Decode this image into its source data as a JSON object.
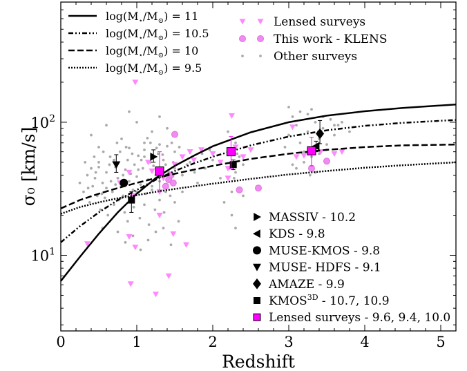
{
  "chart_data": {
    "type": "scatter",
    "xlabel": "Redshift",
    "ylabel": "σ₀ [km/s]",
    "xlim": [
      0,
      5.2
    ],
    "ylim": [
      2.7,
      800
    ],
    "yscale": "log",
    "x_ticks": [
      "0",
      "1",
      "2",
      "3",
      "4",
      "5"
    ],
    "y_ticks": [
      {
        "base": "10",
        "exp": "1",
        "value": 10
      },
      {
        "base": "10",
        "exp": "2",
        "value": 100
      }
    ],
    "model_curves": [
      {
        "label_pre": "log(M",
        "label_mid": "/M",
        "label_post": ") = 11",
        "style": "solid",
        "points": [
          [
            0,
            6.4
          ],
          [
            0.25,
            9.7
          ],
          [
            0.5,
            14.5
          ],
          [
            0.75,
            21
          ],
          [
            1,
            29
          ],
          [
            1.25,
            38
          ],
          [
            1.5,
            47
          ],
          [
            1.75,
            56
          ],
          [
            2,
            66
          ],
          [
            2.5,
            84
          ],
          [
            3,
            100
          ],
          [
            3.5,
            112
          ],
          [
            4,
            121
          ],
          [
            4.5,
            128
          ],
          [
            5.2,
            136
          ]
        ]
      },
      {
        "label_pre": "log(M",
        "label_mid": "/M",
        "label_post": ") = 10.5",
        "style": "dashdot",
        "points": [
          [
            0,
            12.5
          ],
          [
            0.25,
            16.5
          ],
          [
            0.5,
            21
          ],
          [
            0.75,
            26
          ],
          [
            1,
            31
          ],
          [
            1.25,
            37
          ],
          [
            1.5,
            43
          ],
          [
            1.75,
            49
          ],
          [
            2,
            55
          ],
          [
            2.5,
            67
          ],
          [
            3,
            78
          ],
          [
            3.5,
            87
          ],
          [
            4,
            94
          ],
          [
            4.5,
            99
          ],
          [
            5.2,
            104
          ]
        ]
      },
      {
        "label_pre": "log(M",
        "label_mid": "/M",
        "label_post": ") = 10",
        "style": "dashed",
        "points": [
          [
            0,
            22.5
          ],
          [
            0.25,
            26
          ],
          [
            0.5,
            29
          ],
          [
            0.75,
            32
          ],
          [
            1,
            35
          ],
          [
            1.25,
            38
          ],
          [
            1.5,
            41
          ],
          [
            1.75,
            44
          ],
          [
            2,
            47
          ],
          [
            2.5,
            53
          ],
          [
            3,
            58
          ],
          [
            3.5,
            62
          ],
          [
            4,
            65
          ],
          [
            4.5,
            67
          ],
          [
            5.2,
            68
          ]
        ]
      },
      {
        "label_pre": "log(M",
        "label_mid": "/M",
        "label_post": ") = 9.5",
        "style": "dotted",
        "points": [
          [
            0,
            20.5
          ],
          [
            0.25,
            23
          ],
          [
            0.5,
            25
          ],
          [
            0.75,
            26.8
          ],
          [
            1,
            28.3
          ],
          [
            1.25,
            30
          ],
          [
            1.5,
            31.5
          ],
          [
            1.75,
            33
          ],
          [
            2,
            34.5
          ],
          [
            2.5,
            37.5
          ],
          [
            3,
            40.5
          ],
          [
            3.5,
            43
          ],
          [
            4,
            45.5
          ],
          [
            4.5,
            47.5
          ],
          [
            5.2,
            50
          ]
        ]
      }
    ],
    "marker_legend_top": [
      {
        "label": "Lensed surveys",
        "marker": "triangle-down",
        "color": "#ff88ff"
      },
      {
        "label": "This work - KLENS",
        "marker": "circle",
        "color": "#f08cf0"
      },
      {
        "label": "Other surveys",
        "marker": "dot",
        "color": "#aaaaaa"
      }
    ],
    "sample_legend": [
      {
        "label": "MASSIV - 10.2",
        "marker": "triangle-right",
        "color": "#000000"
      },
      {
        "label": "KDS - 9.8",
        "marker": "triangle-left",
        "color": "#000000"
      },
      {
        "label": "MUSE-KMOS - 9.8",
        "marker": "circle",
        "color": "#000000"
      },
      {
        "label": "MUSE- HDFS - 9.1",
        "marker": "triangle-down",
        "color": "#000000"
      },
      {
        "label": "AMAZE - 9.9",
        "marker": "diamond",
        "color": "#000000"
      },
      {
        "label_pre": "KMOS",
        "label_sup": "3D",
        "label_post": " - 10.7, 10.9",
        "marker": "square",
        "color": "#000000"
      },
      {
        "label": "Lensed surveys - 9.6, 9.4, 10.0",
        "marker": "square",
        "color": "#ff00ff"
      }
    ],
    "sample_medians": [
      {
        "x": 1.22,
        "y": 55,
        "yerr": [
          50,
          62
        ],
        "marker": "triangle-right",
        "color": "#000000"
      },
      {
        "x": 3.36,
        "y": 66,
        "yerr": [
          60,
          72
        ],
        "marker": "triangle-left",
        "color": "#000000"
      },
      {
        "x": 0.83,
        "y": 35,
        "yerr": [
          33,
          37
        ],
        "marker": "circle",
        "color": "#000000"
      },
      {
        "x": 0.73,
        "y": 48,
        "yerr": [
          42,
          57
        ],
        "marker": "triangle-down",
        "color": "#000000"
      },
      {
        "x": 3.41,
        "y": 82,
        "yerr": [
          69,
          103
        ],
        "marker": "diamond",
        "color": "#000000"
      },
      {
        "x": 0.93,
        "y": 26,
        "yerr": [
          21,
          30
        ],
        "marker": "square",
        "color": "#000000"
      },
      {
        "x": 2.27,
        "y": 48,
        "yerr": [
          44,
          52
        ],
        "marker": "square",
        "color": "#000000"
      },
      {
        "x": 1.3,
        "y": 43,
        "yerr": [
          30,
          60
        ],
        "marker": "square",
        "color": "#ff00ff"
      },
      {
        "x": 2.24,
        "y": 60,
        "yerr": [
          45,
          78
        ],
        "marker": "square",
        "color": "#ff00ff"
      },
      {
        "x": 3.3,
        "y": 61,
        "yerr": [
          47,
          77
        ],
        "marker": "square",
        "color": "#ff00ff"
      }
    ],
    "lensed_points": [
      [
        0.35,
        12.2
      ],
      [
        0.9,
        13.8
      ],
      [
        0.92,
        6.1
      ],
      [
        0.98,
        11.5
      ],
      [
        1.25,
        5.1
      ],
      [
        1.42,
        7
      ],
      [
        1.48,
        14.5
      ],
      [
        1.65,
        12
      ],
      [
        0.78,
        35
      ],
      [
        0.9,
        42
      ],
      [
        1.15,
        50
      ],
      [
        1.2,
        43
      ],
      [
        1.3,
        30
      ],
      [
        1.35,
        38
      ],
      [
        1.5,
        48
      ],
      [
        1.6,
        55
      ],
      [
        1.7,
        60
      ],
      [
        1.75,
        52
      ],
      [
        1.85,
        62
      ],
      [
        2.0,
        58
      ],
      [
        2.1,
        50
      ],
      [
        2.2,
        45
      ],
      [
        2.25,
        112
      ],
      [
        2.4,
        55
      ],
      [
        2.5,
        62
      ],
      [
        2.2,
        38
      ],
      [
        2.3,
        65
      ],
      [
        3.05,
        92
      ],
      [
        3.1,
        55
      ],
      [
        3.2,
        56
      ],
      [
        3.35,
        64
      ],
      [
        3.42,
        60
      ],
      [
        3.6,
        58
      ],
      [
        3.7,
        60
      ],
      [
        0.95,
        28
      ],
      [
        1.3,
        20
      ],
      [
        0.98,
        200
      ]
    ],
    "klens_points": [
      [
        1.38,
        33
      ],
      [
        1.42,
        37
      ],
      [
        1.45,
        40
      ],
      [
        1.48,
        35
      ],
      [
        1.5,
        81
      ],
      [
        2.35,
        31
      ],
      [
        2.6,
        32
      ],
      [
        3.5,
        51
      ],
      [
        3.3,
        45
      ]
    ],
    "other_survey_points": [
      [
        0.35,
        40
      ],
      [
        0.4,
        45
      ],
      [
        0.45,
        38
      ],
      [
        0.5,
        50
      ],
      [
        0.55,
        35
      ],
      [
        0.6,
        42
      ],
      [
        0.65,
        55
      ],
      [
        0.68,
        30
      ],
      [
        0.72,
        46
      ],
      [
        0.75,
        38
      ],
      [
        0.78,
        60
      ],
      [
        0.8,
        33
      ],
      [
        0.82,
        28
      ],
      [
        0.85,
        44
      ],
      [
        0.88,
        52
      ],
      [
        0.9,
        36
      ],
      [
        0.92,
        41
      ],
      [
        0.95,
        31
      ],
      [
        0.97,
        48
      ],
      [
        1.0,
        39
      ],
      [
        1.02,
        56
      ],
      [
        1.05,
        34
      ],
      [
        1.08,
        45
      ],
      [
        1.1,
        62
      ],
      [
        1.12,
        29
      ],
      [
        1.15,
        37
      ],
      [
        1.18,
        70
      ],
      [
        1.2,
        33
      ],
      [
        1.22,
        47
      ],
      [
        1.25,
        40
      ],
      [
        1.28,
        58
      ],
      [
        1.3,
        36
      ],
      [
        1.32,
        44
      ],
      [
        1.35,
        52
      ],
      [
        1.38,
        30
      ],
      [
        1.4,
        66
      ],
      [
        1.42,
        42
      ],
      [
        1.45,
        38
      ],
      [
        1.48,
        50
      ],
      [
        1.5,
        45
      ],
      [
        0.3,
        30
      ],
      [
        0.38,
        25
      ],
      [
        0.42,
        33
      ],
      [
        0.48,
        28
      ],
      [
        0.52,
        22
      ],
      [
        0.58,
        27
      ],
      [
        0.62,
        20
      ],
      [
        0.7,
        24
      ],
      [
        0.76,
        26
      ],
      [
        0.84,
        21
      ],
      [
        0.88,
        18
      ],
      [
        0.96,
        23
      ],
      [
        1.04,
        19
      ],
      [
        1.1,
        24
      ],
      [
        1.16,
        17
      ],
      [
        1.24,
        22
      ],
      [
        1.3,
        26
      ],
      [
        1.36,
        21
      ],
      [
        1.44,
        28
      ],
      [
        1.5,
        25
      ],
      [
        0.4,
        80
      ],
      [
        0.6,
        95
      ],
      [
        0.8,
        75
      ],
      [
        1.0,
        100
      ],
      [
        1.2,
        85
      ],
      [
        1.3,
        110
      ],
      [
        1.4,
        90
      ],
      [
        0.9,
        120
      ],
      [
        1.1,
        70
      ],
      [
        0.5,
        65
      ],
      [
        0.55,
        16
      ],
      [
        0.75,
        15
      ],
      [
        0.95,
        14
      ],
      [
        1.15,
        13
      ],
      [
        1.35,
        16
      ],
      [
        1.55,
        18
      ],
      [
        0.85,
        12.5
      ],
      [
        1.05,
        11
      ],
      [
        1.25,
        15
      ],
      [
        1.45,
        12
      ],
      [
        1.6,
        40
      ],
      [
        1.7,
        50
      ],
      [
        1.8,
        35
      ],
      [
        1.9,
        45
      ],
      [
        2.0,
        52
      ],
      [
        2.1,
        38
      ],
      [
        2.2,
        60
      ],
      [
        2.3,
        42
      ],
      [
        2.35,
        55
      ],
      [
        2.4,
        48
      ],
      [
        2.25,
        30
      ],
      [
        2.3,
        70
      ],
      [
        2.2,
        85
      ],
      [
        2.4,
        28
      ],
      [
        2.15,
        25
      ],
      [
        2.28,
        38
      ],
      [
        2.32,
        58
      ],
      [
        2.25,
        20
      ],
      [
        2.3,
        16
      ],
      [
        2.22,
        45
      ],
      [
        2.95,
        65
      ],
      [
        3.0,
        80
      ],
      [
        3.05,
        110
      ],
      [
        3.1,
        95
      ],
      [
        3.15,
        70
      ],
      [
        3.2,
        60
      ],
      [
        3.25,
        85
      ],
      [
        3.3,
        125
      ],
      [
        3.35,
        100
      ],
      [
        3.4,
        75
      ],
      [
        3.45,
        90
      ],
      [
        3.5,
        68
      ],
      [
        3.55,
        105
      ],
      [
        3.6,
        80
      ],
      [
        3.65,
        95
      ],
      [
        3.1,
        45
      ],
      [
        3.2,
        50
      ],
      [
        3.3,
        55
      ],
      [
        3.4,
        58
      ],
      [
        3.5,
        62
      ],
      [
        3.0,
        130
      ],
      [
        3.15,
        120
      ],
      [
        3.25,
        115
      ],
      [
        3.45,
        110
      ],
      [
        3.6,
        95
      ],
      [
        3.7,
        100
      ],
      [
        3.8,
        85
      ],
      [
        3.35,
        42
      ],
      [
        3.05,
        48
      ],
      [
        3.28,
        40
      ],
      [
        0.25,
        35
      ],
      [
        0.32,
        50
      ],
      [
        0.44,
        55
      ],
      [
        0.56,
        60
      ],
      [
        0.64,
        48
      ],
      [
        0.74,
        70
      ],
      [
        0.86,
        65
      ],
      [
        0.94,
        58
      ],
      [
        1.06,
        52
      ],
      [
        1.14,
        76
      ],
      [
        1.26,
        64
      ],
      [
        1.34,
        57
      ],
      [
        1.46,
        70
      ],
      [
        1.56,
        65
      ],
      [
        1.66,
        48
      ],
      [
        1.76,
        42
      ],
      [
        1.86,
        58
      ],
      [
        1.96,
        62
      ],
      [
        0.46,
        42
      ],
      [
        0.66,
        36
      ],
      [
        0.36,
        32
      ],
      [
        0.54,
        29
      ],
      [
        0.72,
        34
      ],
      [
        0.82,
        40
      ],
      [
        1.02,
        44
      ],
      [
        1.18,
        50
      ],
      [
        1.28,
        42
      ],
      [
        1.38,
        48
      ],
      [
        0.6,
        32
      ],
      [
        0.8,
        27
      ],
      [
        1.0,
        30
      ],
      [
        1.2,
        31
      ],
      [
        1.4,
        34
      ],
      [
        0.5,
        46
      ],
      [
        0.7,
        52
      ],
      [
        0.9,
        64
      ],
      [
        1.1,
        55
      ],
      [
        1.3,
        68
      ],
      [
        1.5,
        60
      ],
      [
        1.6,
        30
      ]
    ]
  }
}
